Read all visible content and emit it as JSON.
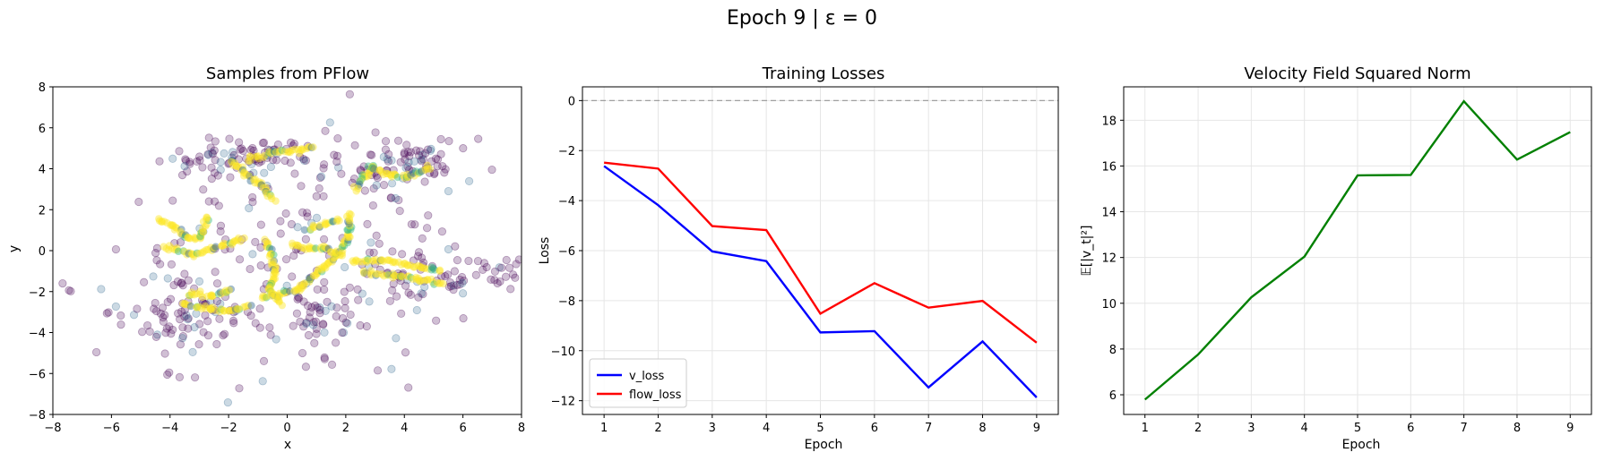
{
  "suptitle": "Epoch 9 | ε = 0",
  "chart_data": [
    {
      "type": "scatter",
      "title": "Samples from PFlow",
      "xlabel": "x",
      "ylabel": "y",
      "xlim": [
        -8,
        8
      ],
      "ylim": [
        -8,
        8
      ],
      "xticks": [
        -8,
        -6,
        -4,
        -2,
        0,
        2,
        4,
        6,
        8
      ],
      "yticks": [
        -8,
        -6,
        -4,
        -2,
        0,
        2,
        4,
        6,
        8
      ],
      "grid": false,
      "colormap": [
        "#440154",
        "#31688e",
        "#35b779",
        "#fde725"
      ],
      "point_alpha": 0.25,
      "clusters": [
        {
          "x": -2.3,
          "y": 4.6,
          "sx": 1.0,
          "sy": 0.45,
          "n": 50
        },
        {
          "x": -0.4,
          "y": 4.6,
          "sx": 0.8,
          "sy": 0.35,
          "n": 25
        },
        {
          "x": 4.4,
          "y": 4.5,
          "sx": 0.9,
          "sy": 0.5,
          "n": 55
        },
        {
          "x": 2.9,
          "y": 3.6,
          "sx": 0.8,
          "sy": 0.6,
          "n": 25
        },
        {
          "x": -3.8,
          "y": -2.8,
          "sx": 0.8,
          "sy": 1.4,
          "n": 60
        },
        {
          "x": -3.1,
          "y": -3.0,
          "sx": 1.4,
          "sy": 0.6,
          "n": 30
        },
        {
          "x": 1.0,
          "y": -3.6,
          "sx": 0.5,
          "sy": 1.2,
          "n": 40
        },
        {
          "x": 5.8,
          "y": -1.2,
          "sx": 1.3,
          "sy": 0.6,
          "n": 45
        },
        {
          "x": 3.3,
          "y": -1.3,
          "sx": 1.0,
          "sy": 0.8,
          "n": 30
        },
        {
          "x": 0.0,
          "y": 0.0,
          "sx": 3.6,
          "sy": 3.2,
          "n": 170
        }
      ],
      "paths": [
        [
          [
            -1.9,
            4.4
          ],
          [
            -1.4,
            3.7
          ],
          [
            -0.8,
            3.1
          ],
          [
            -0.5,
            2.5
          ]
        ],
        [
          [
            -1.4,
            4.5
          ],
          [
            -0.5,
            4.8
          ],
          [
            0.5,
            4.9
          ],
          [
            0.9,
            5.1
          ]
        ],
        [
          [
            3.0,
            4.1
          ],
          [
            2.6,
            3.6
          ],
          [
            2.3,
            3.0
          ]
        ],
        [
          [
            2.8,
            4.1
          ],
          [
            3.5,
            3.7
          ],
          [
            4.1,
            3.6
          ],
          [
            4.9,
            4.1
          ]
        ],
        [
          [
            -4.4,
            1.5
          ],
          [
            -3.9,
            1.2
          ],
          [
            -3.4,
            0.6
          ],
          [
            -3.0,
            0.6
          ],
          [
            -2.7,
            1.6
          ]
        ],
        [
          [
            -4.2,
            0.2
          ],
          [
            -3.2,
            -0.2
          ],
          [
            -2.1,
            0.3
          ],
          [
            -1.5,
            0.6
          ]
        ],
        [
          [
            -3.4,
            -2.1
          ],
          [
            -2.6,
            -2.2
          ],
          [
            -1.9,
            -1.9
          ]
        ],
        [
          [
            -3.6,
            -2.6
          ],
          [
            -2.6,
            -2.9
          ],
          [
            -1.8,
            -2.9
          ],
          [
            -1.3,
            -2.7
          ]
        ],
        [
          [
            -0.7,
            0.5
          ],
          [
            -0.4,
            -1.0
          ],
          [
            -0.6,
            -1.9
          ],
          [
            -0.2,
            -2.6
          ]
        ],
        [
          [
            -0.9,
            -2.3
          ],
          [
            0.4,
            -1.9
          ],
          [
            1.1,
            -1.0
          ],
          [
            1.6,
            -0.4
          ],
          [
            2.1,
            0.7
          ],
          [
            2.1,
            1.8
          ]
        ],
        [
          [
            0.2,
            0.3
          ],
          [
            0.7,
            0.1
          ],
          [
            1.3,
            0.1
          ],
          [
            1.9,
            -0.2
          ]
        ],
        [
          [
            2.2,
            -0.5
          ],
          [
            3.4,
            -0.5
          ],
          [
            4.6,
            -0.8
          ],
          [
            5.2,
            -1.0
          ]
        ],
        [
          [
            2.6,
            -1.0
          ],
          [
            3.6,
            -1.2
          ],
          [
            4.5,
            -1.4
          ],
          [
            5.3,
            -1.6
          ]
        ],
        [
          [
            0.7,
            1.0
          ],
          [
            1.0,
            1.2
          ],
          [
            1.8,
            1.5
          ]
        ]
      ]
    },
    {
      "type": "line",
      "title": "Training Losses",
      "xlabel": "Epoch",
      "ylabel": "Loss",
      "xlim": [
        0.6,
        9.4
      ],
      "ylim": [
        -12.55,
        0.55
      ],
      "xticks": [
        1,
        2,
        3,
        4,
        5,
        6,
        7,
        8,
        9
      ],
      "yticks": [
        0,
        -2,
        -4,
        -6,
        -8,
        -10,
        -12
      ],
      "grid": true,
      "reference_line": {
        "y": 0,
        "style": "dashed",
        "color": "#a0a0a0"
      },
      "legend_position": "lower-left",
      "x": [
        1,
        2,
        3,
        4,
        5,
        6,
        7,
        8,
        9
      ],
      "series": [
        {
          "name": "v_loss",
          "color": "#0000ff",
          "values": [
            -2.62,
            -4.18,
            -6.03,
            -6.42,
            -9.27,
            -9.22,
            -11.47,
            -9.63,
            -11.87
          ]
        },
        {
          "name": "flow_loss",
          "color": "#ff0000",
          "values": [
            -2.48,
            -2.72,
            -5.02,
            -5.18,
            -8.52,
            -7.3,
            -8.28,
            -8.01,
            -9.68
          ]
        }
      ]
    },
    {
      "type": "line",
      "title": "Velocity Field Squared Norm",
      "xlabel": "Epoch",
      "ylabel": "𝔼[|v_t|²]",
      "xlim": [
        0.6,
        9.4
      ],
      "ylim": [
        5.14,
        19.46
      ],
      "xticks": [
        1,
        2,
        3,
        4,
        5,
        6,
        7,
        8,
        9
      ],
      "yticks": [
        6,
        8,
        10,
        12,
        14,
        16,
        18
      ],
      "grid": true,
      "x": [
        1,
        2,
        3,
        4,
        5,
        6,
        7,
        8,
        9
      ],
      "series": [
        {
          "color": "#008000",
          "values": [
            5.79,
            7.76,
            10.26,
            12.04,
            15.59,
            15.61,
            18.83,
            16.28,
            17.48
          ]
        }
      ]
    }
  ]
}
